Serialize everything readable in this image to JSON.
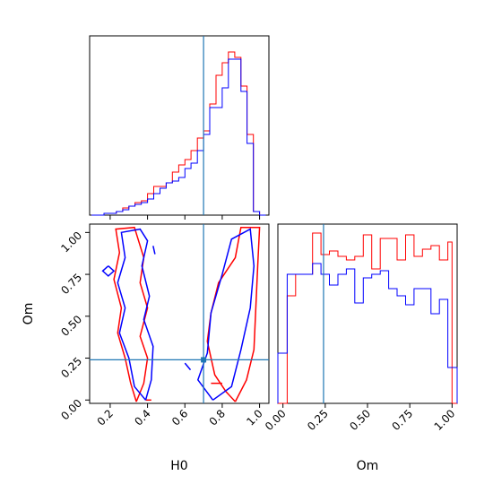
{
  "chart_data": {
    "type": "corner",
    "parameters": [
      "H0",
      "Om"
    ],
    "truth": {
      "H0": 0.7,
      "Om": 0.24
    },
    "colors": {
      "series_a": "#ff0000",
      "series_b": "#0000ff",
      "truth": "#1f77b4"
    },
    "series": [
      {
        "color": "#ff0000"
      },
      {
        "color": "#0000ff"
      }
    ],
    "panels": [
      {
        "id": "H0-marginal",
        "type": "histogram",
        "xlim": [
          0.09,
          1.05
        ],
        "xticks": [
          0.2,
          0.4,
          0.6,
          0.8,
          1.0
        ],
        "bin_edges": [
          0.1,
          0.133,
          0.167,
          0.2,
          0.233,
          0.267,
          0.3,
          0.333,
          0.367,
          0.4,
          0.433,
          0.467,
          0.5,
          0.533,
          0.567,
          0.6,
          0.633,
          0.667,
          0.7,
          0.733,
          0.767,
          0.8,
          0.833,
          0.867,
          0.9,
          0.933,
          0.967,
          1.0,
          1.033
        ],
        "series_values": [
          [
            0.0,
            0.0,
            0.01,
            0.01,
            0.02,
            0.04,
            0.05,
            0.07,
            0.08,
            0.12,
            0.16,
            0.16,
            0.18,
            0.24,
            0.28,
            0.31,
            0.36,
            0.43,
            0.47,
            0.62,
            0.78,
            0.85,
            0.91,
            0.88,
            0.72,
            0.45,
            0.02,
            0.0
          ],
          [
            0.0,
            0.0,
            0.01,
            0.01,
            0.02,
            0.03,
            0.05,
            0.06,
            0.07,
            0.09,
            0.12,
            0.15,
            0.18,
            0.19,
            0.21,
            0.26,
            0.29,
            0.36,
            0.45,
            0.6,
            0.6,
            0.71,
            0.87,
            0.87,
            0.69,
            0.4,
            0.02,
            0.0
          ]
        ]
      },
      {
        "id": "H0-Om-joint",
        "type": "contour",
        "xlim": [
          0.09,
          1.05
        ],
        "ylim": [
          -0.02,
          1.05
        ],
        "xticks": [
          "0.2",
          "0.4",
          "0.6",
          "0.8",
          "1.0"
        ],
        "yticks": [
          "0.00",
          "0.25",
          "0.50",
          "0.75",
          "1.00"
        ],
        "xlabel": "H0",
        "ylabel": "Om",
        "series_contours": [
          [
            [
              [
                0.34,
                -0.01
              ],
              [
                0.38,
                0.1
              ],
              [
                0.4,
                0.25
              ],
              [
                0.36,
                0.38
              ],
              [
                0.4,
                0.55
              ],
              [
                0.36,
                0.7
              ],
              [
                0.38,
                0.85
              ],
              [
                0.33,
                1.03
              ],
              [
                0.23,
                1.02
              ],
              [
                0.25,
                0.88
              ],
              [
                0.22,
                0.72
              ],
              [
                0.26,
                0.55
              ],
              [
                0.24,
                0.4
              ],
              [
                0.28,
                0.25
              ],
              [
                0.31,
                0.1
              ],
              [
                0.34,
                -0.01
              ]
            ],
            [
              [
                0.87,
                -0.01
              ],
              [
                0.93,
                0.12
              ],
              [
                0.97,
                0.3
              ],
              [
                0.98,
                0.55
              ],
              [
                0.99,
                0.8
              ],
              [
                1.0,
                1.03
              ],
              [
                0.9,
                1.03
              ],
              [
                0.87,
                0.85
              ],
              [
                0.78,
                0.7
              ],
              [
                0.74,
                0.52
              ],
              [
                0.72,
                0.35
              ],
              [
                0.76,
                0.15
              ],
              [
                0.82,
                0.05
              ],
              [
                0.87,
                -0.01
              ]
            ],
            [
              [
                0.39,
                0.0
              ],
              [
                0.42,
                0.0
              ]
            ],
            [
              [
                0.74,
                0.1
              ],
              [
                0.8,
                0.1
              ]
            ]
          ],
          [
            [
              [
                0.39,
                0.0
              ],
              [
                0.42,
                0.12
              ],
              [
                0.43,
                0.32
              ],
              [
                0.38,
                0.48
              ],
              [
                0.41,
                0.62
              ],
              [
                0.37,
                0.8
              ],
              [
                0.4,
                0.95
              ],
              [
                0.36,
                1.02
              ],
              [
                0.26,
                1.0
              ],
              [
                0.28,
                0.85
              ],
              [
                0.24,
                0.7
              ],
              [
                0.28,
                0.55
              ],
              [
                0.25,
                0.4
              ],
              [
                0.3,
                0.25
              ],
              [
                0.33,
                0.08
              ],
              [
                0.39,
                0.0
              ]
            ],
            [
              [
                0.75,
                0.0
              ],
              [
                0.85,
                0.08
              ],
              [
                0.9,
                0.3
              ],
              [
                0.95,
                0.55
              ],
              [
                0.97,
                0.8
              ],
              [
                0.95,
                1.02
              ],
              [
                0.85,
                0.96
              ],
              [
                0.8,
                0.75
              ],
              [
                0.74,
                0.52
              ],
              [
                0.72,
                0.28
              ],
              [
                0.67,
                0.12
              ],
              [
                0.75,
                0.0
              ]
            ],
            [
              [
                0.19,
                0.8
              ],
              [
                0.22,
                0.77
              ],
              [
                0.19,
                0.74
              ],
              [
                0.16,
                0.77
              ],
              [
                0.19,
                0.8
              ]
            ],
            [
              [
                0.43,
                0.92
              ],
              [
                0.44,
                0.87
              ]
            ],
            [
              [
                0.6,
                0.22
              ],
              [
                0.63,
                0.18
              ]
            ]
          ]
        ]
      },
      {
        "id": "Om-marginal",
        "type": "histogram",
        "xlim": [
          -0.03,
          1.03
        ],
        "xticks": [
          "0.00",
          "0.25",
          "0.50",
          "0.75",
          "1.00"
        ],
        "xlabel": "Om",
        "bin_edges": [
          -0.03,
          0.0,
          0.025,
          0.075,
          0.125,
          0.175,
          0.225,
          0.275,
          0.325,
          0.375,
          0.425,
          0.475,
          0.525,
          0.575,
          0.625,
          0.675,
          0.725,
          0.775,
          0.825,
          0.875,
          0.925,
          0.975,
          1.0,
          1.03
        ],
        "series_values": [
          [
            0.0,
            0.0,
            0.6,
            0.72,
            0.72,
            0.95,
            0.83,
            0.85,
            0.82,
            0.8,
            0.82,
            0.94,
            0.75,
            0.92,
            0.92,
            0.8,
            0.94,
            0.82,
            0.86,
            0.88,
            0.8,
            0.9,
            0.0
          ],
          [
            0.28,
            0.28,
            0.72,
            0.72,
            0.72,
            0.78,
            0.72,
            0.66,
            0.72,
            0.75,
            0.56,
            0.7,
            0.72,
            0.74,
            0.64,
            0.6,
            0.55,
            0.64,
            0.64,
            0.5,
            0.58,
            0.2,
            0.2
          ]
        ]
      }
    ]
  }
}
